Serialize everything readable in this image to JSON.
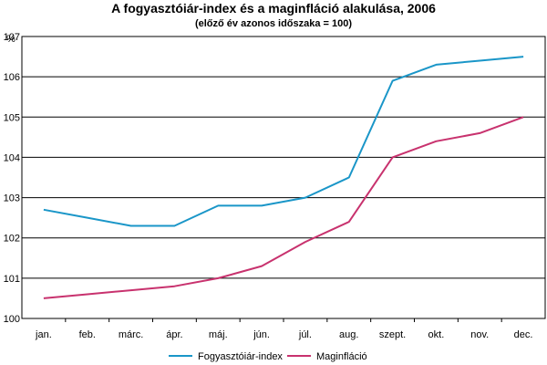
{
  "chart_data": {
    "type": "line",
    "title": "A fogyasztóiár-index és a maginfláció alakulása, 2006",
    "subtitle": "(előző év azonos időszaka = 100)",
    "ylabel": "%",
    "xlabel": "",
    "categories": [
      "jan.",
      "feb.",
      "márc.",
      "ápr.",
      "máj.",
      "jún.",
      "júl.",
      "aug.",
      "szept.",
      "okt.",
      "nov.",
      "dec."
    ],
    "ylim": [
      100,
      107
    ],
    "yticks": [
      "100",
      "101",
      "102",
      "103",
      "104",
      "105",
      "106",
      "107"
    ],
    "grid": true,
    "legend_position": "bottom",
    "series": [
      {
        "name": "Fogyasztóiár-index",
        "color": "#1a96c8",
        "values": [
          102.7,
          102.5,
          102.3,
          102.3,
          102.8,
          102.8,
          103.0,
          103.5,
          105.9,
          106.3,
          106.4,
          106.5
        ]
      },
      {
        "name": "Maginfláció",
        "color": "#c8326e",
        "values": [
          100.5,
          100.6,
          100.7,
          100.8,
          101.0,
          101.3,
          101.9,
          102.4,
          104.0,
          104.4,
          104.6,
          105.0
        ]
      }
    ]
  }
}
